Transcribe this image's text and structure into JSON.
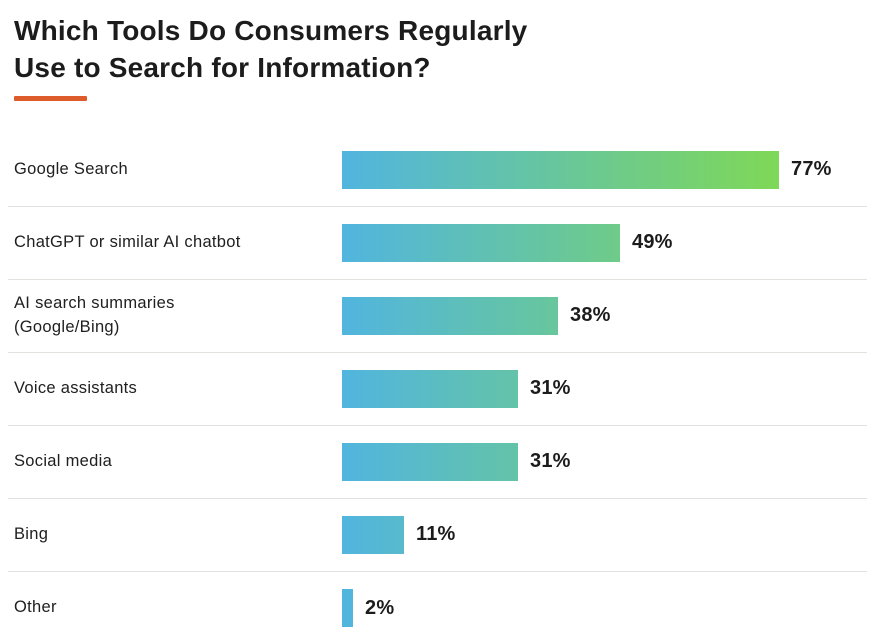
{
  "header": {
    "title": "Which Tools Do Consumers Regularly\nUse to Search for Information?",
    "accent_color": "#DE5B2C"
  },
  "chart_data": {
    "type": "bar",
    "orientation": "horizontal",
    "title": "Which Tools Do Consumers Regularly Use to Search for Information?",
    "categories": [
      "Google Search",
      "ChatGPT or similar AI chatbot",
      "AI search summaries\n(Google/Bing)",
      "Voice assistants",
      "Social media",
      "Bing",
      "Other"
    ],
    "values": [
      77,
      49,
      38,
      31,
      31,
      11,
      2
    ],
    "value_labels": [
      "77%",
      "49%",
      "38%",
      "31%",
      "31%",
      "11%",
      "2%"
    ],
    "xlabel": "",
    "ylabel": "",
    "xlim": [
      0,
      77
    ],
    "grid": false,
    "legend": false,
    "bar_gradient_start": "#51B5DF",
    "bar_gradient_end": "#7FD857",
    "value_label_position": "right-of-bar",
    "row_separator_color": "#e2e2df"
  }
}
